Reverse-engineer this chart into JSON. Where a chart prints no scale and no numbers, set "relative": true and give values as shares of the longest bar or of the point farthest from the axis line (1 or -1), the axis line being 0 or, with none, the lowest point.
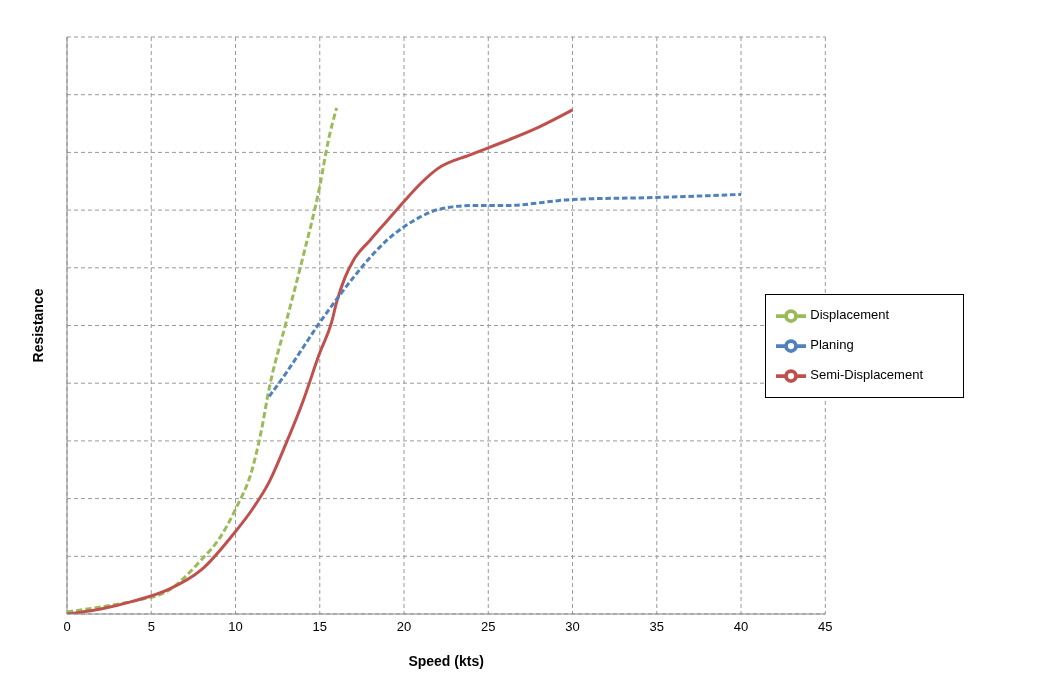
{
  "chart_data": {
    "type": "line",
    "xlabel": "Speed (kts)",
    "ylabel": "Resistance",
    "relative": true,
    "xlim": [
      0,
      45
    ],
    "xticks": [
      0,
      5,
      10,
      15,
      20,
      25,
      30,
      35,
      40,
      45
    ],
    "grid": true,
    "legend": "right",
    "marker": "none",
    "series": [
      {
        "name": "Displacement",
        "color": "#9bbb59",
        "line_style": "dashed",
        "x": [
          0,
          2,
          4,
          6,
          8,
          9,
          10,
          11,
          11.5,
          12,
          13,
          14,
          15,
          15.5,
          16
        ],
        "values": [
          0.004,
          0.014,
          0.026,
          0.046,
          0.108,
          0.147,
          0.207,
          0.287,
          0.357,
          0.446,
          0.576,
          0.705,
          0.845,
          0.934,
          1
        ]
      },
      {
        "name": "Semi-Displacement",
        "color": "#c0504d",
        "line_style": "solid",
        "x": [
          0,
          2,
          4,
          6,
          8,
          10,
          11,
          12,
          13,
          14,
          15,
          15.7,
          16,
          16.5,
          17,
          18,
          19,
          20,
          21,
          22,
          24,
          26,
          28,
          30
        ],
        "values": [
          0,
          0.01,
          0.026,
          0.048,
          0.088,
          0.163,
          0.207,
          0.261,
          0.337,
          0.42,
          0.516,
          0.576,
          0.616,
          0.665,
          0.699,
          0.739,
          0.777,
          0.815,
          0.851,
          0.88,
          0.908,
          0.934,
          0.962,
          0.996
        ]
      },
      {
        "name": "Planing",
        "color": "#4f81bd",
        "line_style": "dashed",
        "x": [
          12,
          13,
          14,
          15,
          16,
          17,
          18,
          19,
          20,
          21,
          22,
          24,
          26,
          30,
          35,
          40
        ],
        "values": [
          0.43,
          0.476,
          0.526,
          0.576,
          0.622,
          0.665,
          0.705,
          0.739,
          0.765,
          0.785,
          0.799,
          0.807,
          0.807,
          0.819,
          0.823,
          0.829
        ]
      }
    ]
  }
}
